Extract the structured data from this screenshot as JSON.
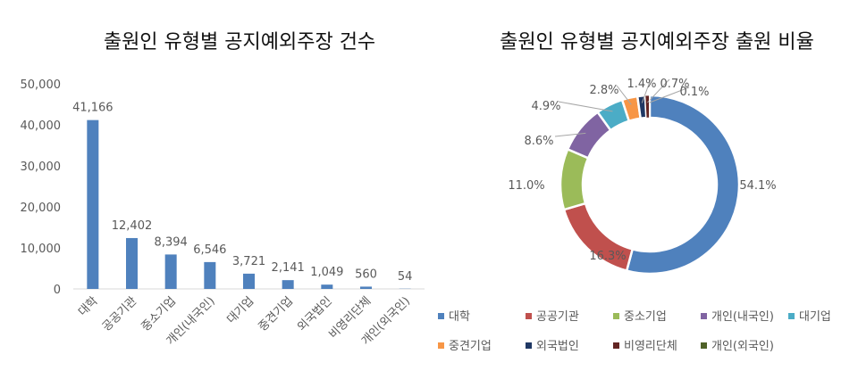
{
  "chart_data": [
    {
      "type": "bar",
      "title": "출원인 유형별 공지예외주장 건수",
      "categories": [
        "대학",
        "공공기관",
        "중소기업",
        "개인(내국인)",
        "대기업",
        "중견기업",
        "외국법인",
        "비영리단체",
        "개인(외국인)"
      ],
      "values": [
        41166,
        12402,
        8394,
        6546,
        3721,
        2141,
        1049,
        560,
        54
      ],
      "data_labels": [
        "41,166",
        "12,402",
        "8,394",
        "6,546",
        "3,721",
        "2,141",
        "1,049",
        "560",
        "54"
      ],
      "yticks": [
        "0",
        "10,000",
        "20,000",
        "30,000",
        "40,000",
        "50,000"
      ],
      "ylim": [
        0,
        50000
      ],
      "color": "#4F81BD",
      "grid": false
    },
    {
      "type": "pie",
      "donut": true,
      "title": "출원인 유형별 공지예외주장 출원 비율",
      "categories": [
        "대학",
        "공공기관",
        "중소기업",
        "개인(내국인)",
        "대기업",
        "중견기업",
        "외국법인",
        "비영리단체",
        "개인(외국인)"
      ],
      "values": [
        54.1,
        16.3,
        11.0,
        8.6,
        4.9,
        2.8,
        1.4,
        0.7,
        0.1
      ],
      "data_labels": [
        "54.1%",
        "16.3%",
        "11.0%",
        "8.6%",
        "4.9%",
        "2.8%",
        "1.4%",
        "0.7%",
        "0.1%"
      ],
      "colors": [
        "#4F81BD",
        "#C0504D",
        "#9BBB59",
        "#8064A2",
        "#4BACC6",
        "#F79646",
        "#1F3864",
        "#632523",
        "#4F6228"
      ],
      "legend_position": "bottom"
    }
  ]
}
